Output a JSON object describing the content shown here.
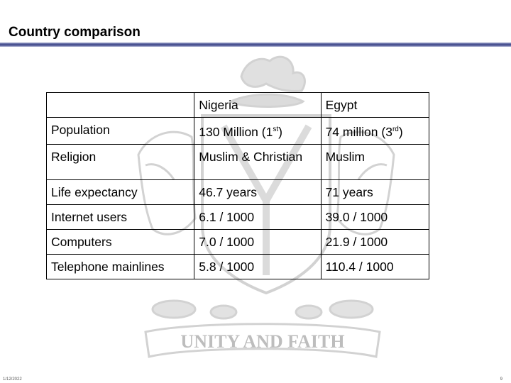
{
  "slide": {
    "title": "Country comparison",
    "date": "1/12/2022",
    "page_number": "9"
  },
  "table": {
    "columns": [
      "",
      "Nigeria",
      "Egypt"
    ],
    "rows": [
      {
        "label": "Population",
        "nigeria": "130 Million (1",
        "nigeria_sup": "st",
        "nigeria_end": ")",
        "egypt": "74 million (3",
        "egypt_sup": "rd",
        "egypt_end": ")"
      },
      {
        "label": "Religion",
        "nigeria": "Muslim & Christian",
        "egypt": "Muslim"
      },
      {
        "label": "Life expectancy",
        "nigeria": "46.7 years",
        "egypt": "71 years"
      },
      {
        "label": "Internet users",
        "nigeria": "6.1 / 1000",
        "egypt": "39.0 / 1000"
      },
      {
        "label": "Computers",
        "nigeria": "7.0 / 1000",
        "egypt": "21.9 / 1000"
      },
      {
        "label": "Telephone mainlines",
        "nigeria": "5.8 / 1000",
        "egypt": "110.4 / 1000"
      }
    ]
  },
  "watermark": {
    "motto": "UNITY AND FAITH",
    "color": "#b8b8b8"
  }
}
